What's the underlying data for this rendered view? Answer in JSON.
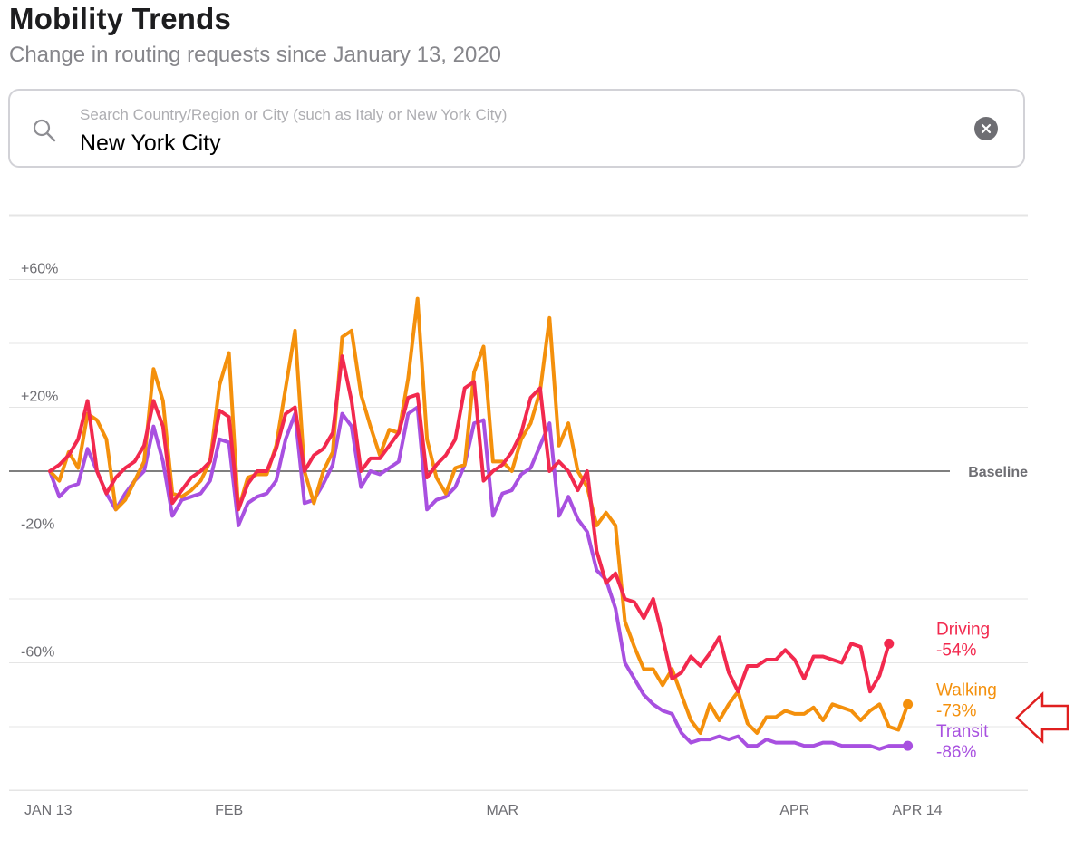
{
  "header": {
    "title": "Mobility Trends",
    "subtitle": "Change in routing requests since January 13, 2020"
  },
  "search": {
    "placeholder": "Search Country/Region or City (such as Italy or New York City)",
    "value": "New York City",
    "icon": "search-icon",
    "clear_icon": "clear-icon"
  },
  "colors": {
    "driving": "#f2294e",
    "walking": "#f4900c",
    "transit": "#a850e0",
    "baseline": "#555555",
    "grid": "#e5e5e5",
    "arrow": "#e01f1f"
  },
  "chart_data": {
    "type": "line",
    "baseline_label": "Baseline",
    "ylim": [
      -100,
      80
    ],
    "y_ticks": [
      {
        "value": 60,
        "label": "+60%"
      },
      {
        "value": 20,
        "label": "+20%"
      },
      {
        "value": -20,
        "label": "-20%"
      },
      {
        "value": -60,
        "label": "-60%"
      }
    ],
    "grid": true,
    "x_start": "2020-01-13",
    "x_end": "2020-04-14",
    "x_ticks": [
      {
        "date": "2020-01-13",
        "label": "JAN 13"
      },
      {
        "date": "2020-02-01",
        "label": "FEB"
      },
      {
        "date": "2020-03-01",
        "label": "MAR"
      },
      {
        "date": "2020-04-01",
        "label": "APR"
      },
      {
        "date": "2020-04-14",
        "label": "APR 14"
      }
    ],
    "series": [
      {
        "name": "Driving",
        "final_label": "-54%",
        "color": "#f2294e",
        "values": [
          0,
          2,
          5,
          10,
          22,
          0,
          -7,
          -2,
          1,
          3,
          8,
          22,
          14,
          -10,
          -6,
          -2,
          0,
          3,
          19,
          17,
          -12,
          -4,
          0,
          0,
          7,
          18,
          20,
          0,
          5,
          7,
          12,
          36,
          22,
          0,
          4,
          4,
          8,
          12,
          23,
          24,
          -2,
          2,
          5,
          10,
          26,
          28,
          -3,
          0,
          2,
          6,
          12,
          23,
          26,
          0,
          3,
          0,
          -6,
          0,
          -25,
          -35,
          -32,
          -40,
          -41,
          -46,
          -40,
          -52,
          -65,
          -63,
          -58,
          -61,
          -57,
          -52,
          -63,
          -69,
          -61,
          -61,
          -59,
          -59,
          -56,
          -59,
          -65,
          -58,
          -58,
          -59,
          -60,
          -54,
          -55,
          -69,
          -64,
          -54
        ]
      },
      {
        "name": "Walking",
        "final_label": "-73%",
        "color": "#f4900c",
        "values": [
          0,
          -3,
          6,
          1,
          18,
          16,
          10,
          -12,
          -9,
          -3,
          3,
          32,
          22,
          -7,
          -8,
          -6,
          -3,
          3,
          27,
          37,
          -12,
          -2,
          -1,
          -1,
          8,
          26,
          44,
          0,
          -10,
          0,
          6,
          42,
          44,
          24,
          14,
          5,
          13,
          12,
          29,
          54,
          10,
          -2,
          -7,
          1,
          2,
          31,
          39,
          3,
          3,
          0,
          10,
          15,
          25,
          48,
          8,
          15,
          0,
          -5,
          -17,
          -13,
          -17,
          -47,
          -55,
          -62,
          -62,
          -67,
          -62,
          -70,
          -78,
          -82,
          -73,
          -78,
          -73,
          -69,
          -79,
          -82,
          -77,
          -77,
          -75,
          -76,
          -76,
          -74,
          -78,
          -73,
          -74,
          -75,
          -78,
          -75,
          -73,
          -80,
          -81,
          -73
        ]
      },
      {
        "name": "Transit",
        "final_label": "-86%",
        "color": "#a850e0",
        "values": [
          0,
          -8,
          -5,
          -4,
          7,
          0,
          -7,
          -12,
          -7,
          -3,
          0,
          14,
          3,
          -14,
          -9,
          -8,
          -7,
          -3,
          10,
          9,
          -17,
          -10,
          -8,
          -7,
          -3,
          10,
          18,
          -10,
          -9,
          -4,
          2,
          18,
          14,
          -5,
          0,
          -1,
          1,
          3,
          18,
          20,
          -12,
          -9,
          -8,
          -5,
          2,
          15,
          16,
          -14,
          -7,
          -6,
          -1,
          1,
          8,
          15,
          -14,
          -8,
          -15,
          -19,
          -31,
          -34,
          -43,
          -60,
          -65,
          -70,
          -73,
          -75,
          -76,
          -82,
          -85,
          -84,
          -84,
          -83,
          -84,
          -83,
          -86,
          -86,
          -84,
          -85,
          -85,
          -85,
          -86,
          -86,
          -85,
          -85,
          -86,
          -86,
          -86,
          -86,
          -87,
          -86,
          -86,
          -86
        ]
      }
    ]
  }
}
